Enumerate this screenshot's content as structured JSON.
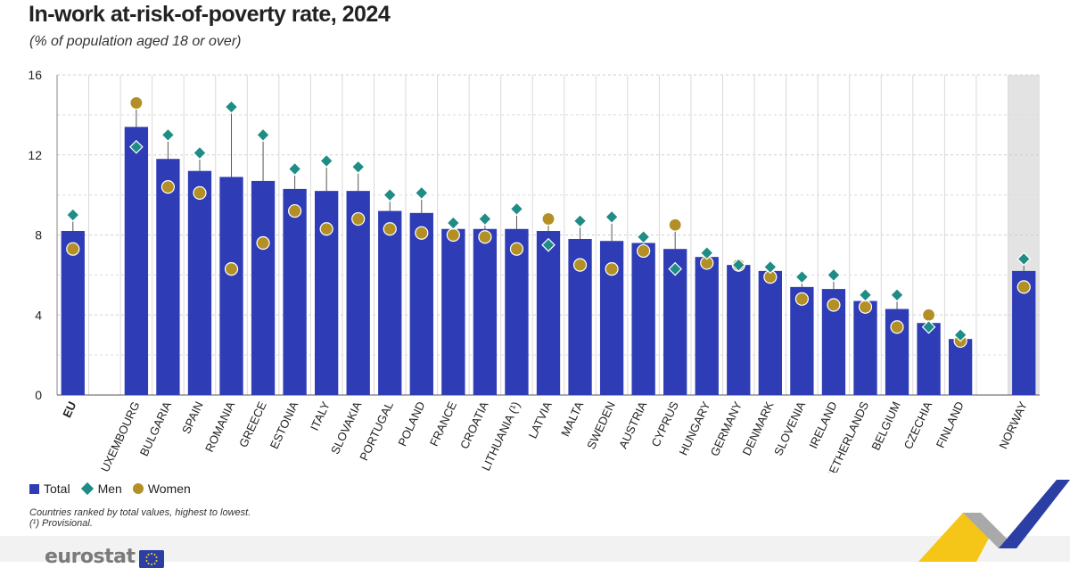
{
  "header": {
    "title": "In-work at-risk-of-poverty rate, 2024",
    "subtitle": "(% of population aged 18 or over)"
  },
  "legend": {
    "total": "Total",
    "men": "Men",
    "women": "Women"
  },
  "notes": {
    "line1": "Countries ranked by total values, highest to lowest.",
    "line2": "(¹) Provisional."
  },
  "branding": {
    "logo_text": "eurostat"
  },
  "colors": {
    "total": "#2e3cb5",
    "men": "#1f8c85",
    "women": "#b39026",
    "highlight_band": "#e3e3e3"
  },
  "chart_data": {
    "type": "bar",
    "title": "In-work at-risk-of-poverty rate, 2024",
    "ylim": [
      0,
      16
    ],
    "yticks": [
      0,
      4,
      8,
      12,
      16
    ],
    "grid": true,
    "legend_position": "bottom-left",
    "categories": [
      "EU",
      "LUXEMBOURG",
      "BULGARIA",
      "SPAIN",
      "ROMANIA",
      "GREECE",
      "ESTONIA",
      "ITALY",
      "SLOVAKIA",
      "PORTUGAL",
      "POLAND",
      "FRANCE",
      "CROATIA",
      "LITHUANIA (¹)",
      "LATVIA",
      "MALTA",
      "SWEDEN",
      "AUSTRIA",
      "CYPRUS",
      "HUNGARY",
      "GERMANY",
      "DENMARK",
      "SLOVENIA",
      "IRELAND",
      "NETHERLANDS",
      "BELGIUM",
      "CZECHIA",
      "FINLAND",
      "NORWAY"
    ],
    "category_groups": [
      "eu",
      "member",
      "member",
      "member",
      "member",
      "member",
      "member",
      "member",
      "member",
      "member",
      "member",
      "member",
      "member",
      "member",
      "member",
      "member",
      "member",
      "member",
      "member",
      "member",
      "member",
      "member",
      "member",
      "member",
      "member",
      "member",
      "member",
      "member",
      "efta"
    ],
    "series": [
      {
        "name": "Total",
        "values": [
          8.2,
          13.4,
          11.8,
          11.2,
          10.9,
          10.7,
          10.3,
          10.2,
          10.2,
          9.2,
          9.1,
          8.3,
          8.3,
          8.3,
          8.2,
          7.8,
          7.7,
          7.6,
          7.3,
          6.9,
          6.5,
          6.2,
          5.4,
          5.3,
          4.7,
          4.3,
          3.6,
          2.8,
          6.2
        ]
      },
      {
        "name": "Men",
        "values": [
          9.0,
          12.4,
          13.0,
          12.1,
          14.4,
          13.0,
          11.3,
          11.7,
          11.4,
          10.0,
          10.1,
          8.6,
          8.8,
          9.3,
          7.5,
          8.7,
          8.9,
          7.9,
          6.3,
          7.1,
          6.5,
          6.4,
          5.9,
          6.0,
          5.0,
          5.0,
          3.4,
          3.0,
          6.8
        ]
      },
      {
        "name": "Women",
        "values": [
          7.3,
          14.6,
          10.4,
          10.1,
          6.3,
          7.6,
          9.2,
          8.3,
          8.8,
          8.3,
          8.1,
          8.0,
          7.9,
          7.3,
          8.8,
          6.5,
          6.3,
          7.2,
          8.5,
          6.6,
          6.5,
          5.9,
          4.8,
          4.5,
          4.4,
          3.4,
          4.0,
          2.7,
          5.4
        ]
      }
    ]
  }
}
